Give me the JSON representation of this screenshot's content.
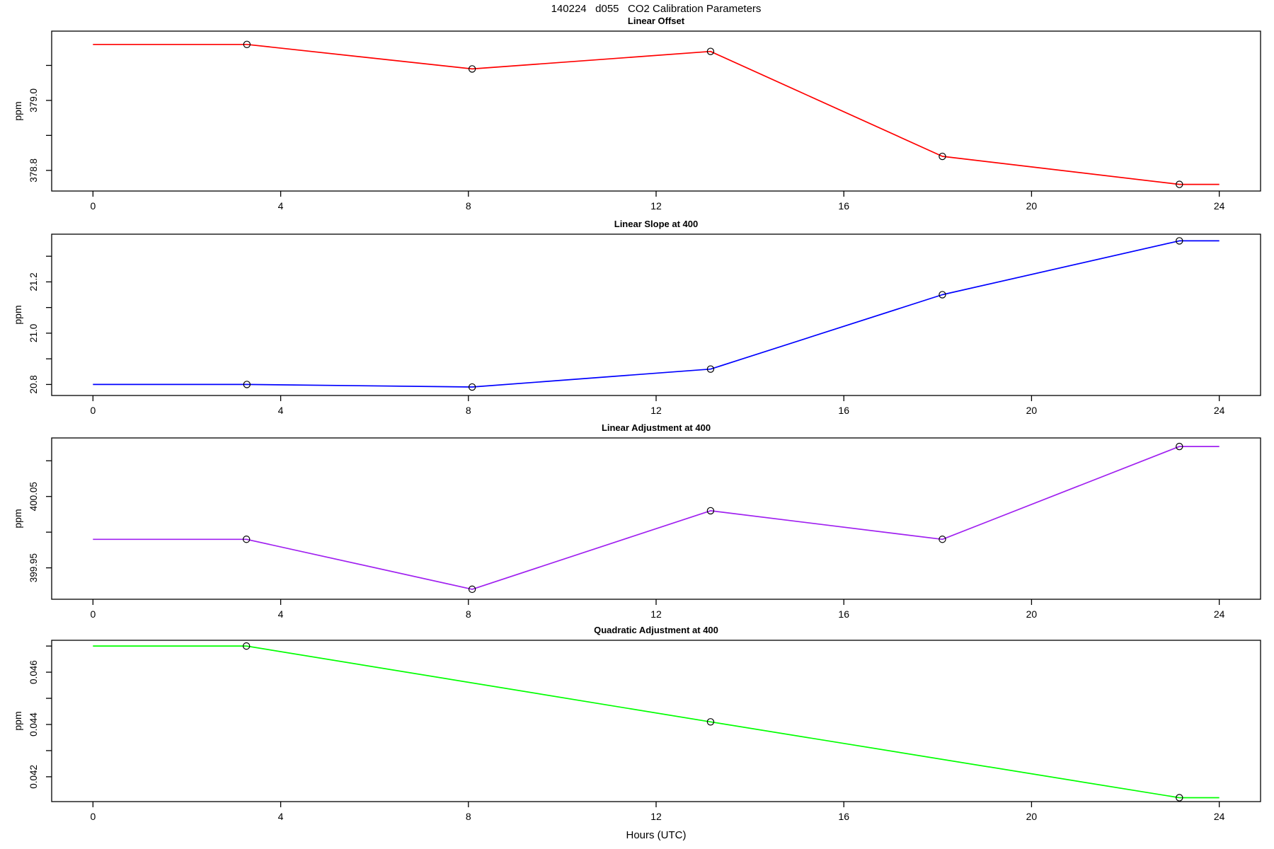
{
  "chart_data": {
    "type": "line",
    "title": "140224   d055   CO2 Calibration Parameters",
    "xlabel": "Hours (UTC)",
    "x_ticks": [
      0,
      4,
      8,
      12,
      16,
      20,
      24
    ],
    "xlim": [
      -0.88,
      24.88
    ],
    "grid": false,
    "legend": "none",
    "marker_style": "open-circle",
    "marker_color": "#000000",
    "panels": [
      {
        "title": "Linear Offset",
        "ylabel": "ppm",
        "color": "#FF0000",
        "ylim": [
          378.741,
          379.198
        ],
        "yticks": [
          {
            "value": 378.8,
            "label": "378.8"
          },
          {
            "value": 378.9,
            "label": ""
          },
          {
            "value": 379.0,
            "label": "379.0"
          },
          {
            "value": 379.1,
            "label": ""
          }
        ],
        "points": [
          {
            "x": 0,
            "y": 379.16,
            "marker": false
          },
          {
            "x": 3.28,
            "y": 379.16,
            "marker": true
          },
          {
            "x": 8.08,
            "y": 379.09,
            "marker": true
          },
          {
            "x": 13.16,
            "y": 379.14,
            "marker": true
          },
          {
            "x": 18.1,
            "y": 378.84,
            "marker": true
          },
          {
            "x": 23.15,
            "y": 378.76,
            "marker": true
          },
          {
            "x": 24.0,
            "y": 378.76,
            "marker": false
          }
        ]
      },
      {
        "title": "Linear Slope at 400",
        "ylabel": "ppm",
        "color": "#0000FF",
        "ylim": [
          20.757,
          21.386
        ],
        "yticks": [
          {
            "value": 20.8,
            "label": "20.8"
          },
          {
            "value": 20.9,
            "label": ""
          },
          {
            "value": 21.0,
            "label": "21.0"
          },
          {
            "value": 21.1,
            "label": ""
          },
          {
            "value": 21.2,
            "label": "21.2"
          },
          {
            "value": 21.3,
            "label": ""
          }
        ],
        "points": [
          {
            "x": 0,
            "y": 20.8,
            "marker": false
          },
          {
            "x": 3.28,
            "y": 20.8,
            "marker": true
          },
          {
            "x": 8.08,
            "y": 20.79,
            "marker": true
          },
          {
            "x": 13.16,
            "y": 20.86,
            "marker": true
          },
          {
            "x": 18.1,
            "y": 21.15,
            "marker": true
          },
          {
            "x": 23.15,
            "y": 21.36,
            "marker": true
          },
          {
            "x": 24.0,
            "y": 21.36,
            "marker": false
          }
        ]
      },
      {
        "title": "Linear Adjustment at 400",
        "ylabel": "ppm",
        "color": "#A020F0",
        "ylim": [
          399.906,
          400.132
        ],
        "yticks": [
          {
            "value": 399.95,
            "label": "399.95"
          },
          {
            "value": 400.0,
            "label": ""
          },
          {
            "value": 400.05,
            "label": "400.05"
          },
          {
            "value": 400.1,
            "label": ""
          }
        ],
        "points": [
          {
            "x": 0,
            "y": 399.99,
            "marker": false
          },
          {
            "x": 3.27,
            "y": 399.99,
            "marker": true
          },
          {
            "x": 8.08,
            "y": 399.92,
            "marker": true
          },
          {
            "x": 13.16,
            "y": 400.03,
            "marker": true
          },
          {
            "x": 18.1,
            "y": 399.99,
            "marker": true
          },
          {
            "x": 23.15,
            "y": 400.12,
            "marker": true
          },
          {
            "x": 24.0,
            "y": 400.12,
            "marker": false
          }
        ]
      },
      {
        "title": "Quadratic Adjustment at 400",
        "ylabel": "ppm",
        "color": "#00FF00",
        "ylim": [
          0.04105,
          0.04722
        ],
        "yticks": [
          {
            "value": 0.042,
            "label": "0.042"
          },
          {
            "value": 0.043,
            "label": ""
          },
          {
            "value": 0.044,
            "label": "0.044"
          },
          {
            "value": 0.045,
            "label": ""
          },
          {
            "value": 0.046,
            "label": "0.046"
          },
          {
            "value": 0.047,
            "label": ""
          }
        ],
        "points": [
          {
            "x": 0,
            "y": 0.047,
            "marker": false
          },
          {
            "x": 3.27,
            "y": 0.047,
            "marker": true
          },
          {
            "x": 13.16,
            "y": 0.0441,
            "marker": true
          },
          {
            "x": 23.15,
            "y": 0.0412,
            "marker": true
          },
          {
            "x": 24.0,
            "y": 0.0412,
            "marker": false
          }
        ]
      }
    ]
  }
}
